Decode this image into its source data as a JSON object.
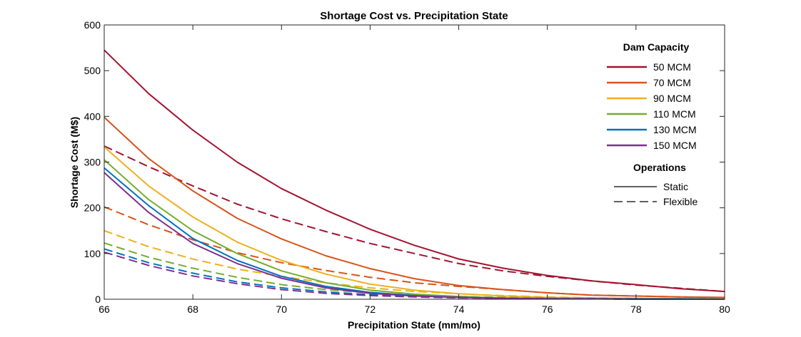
{
  "chart_data": {
    "type": "line",
    "title": "Shortage Cost vs. Precipitation State",
    "xlabel": "Precipitation State (mm/mo)",
    "ylabel": "Shortage Cost (M$)",
    "xlim": [
      66,
      80
    ],
    "ylim": [
      0,
      600
    ],
    "xticks": [
      66,
      68,
      70,
      72,
      74,
      76,
      78,
      80
    ],
    "yticks": [
      0,
      100,
      200,
      300,
      400,
      500,
      600
    ],
    "x": [
      66,
      67,
      68,
      69,
      70,
      71,
      72,
      73,
      74,
      75,
      76,
      77,
      78,
      79,
      80
    ],
    "grid": false,
    "legend_position": "top-right",
    "legend_capacity_title": "Dam Capacity",
    "legend_operations_title": "Operations",
    "operations": [
      {
        "name": "Static",
        "dash": "solid"
      },
      {
        "name": "Flexible",
        "dash": "dashed"
      }
    ],
    "capacities": [
      {
        "name": "50 MCM",
        "color": "#A2142F",
        "static": [
          545,
          450,
          370,
          300,
          242,
          195,
          153,
          118,
          88,
          68,
          52,
          40,
          32,
          23,
          17
        ],
        "flexible": [
          335,
          290,
          248,
          208,
          176,
          148,
          122,
          100,
          78,
          62,
          50,
          40,
          31,
          24,
          17
        ]
      },
      {
        "name": "70 MCM",
        "color": "#D95319",
        "static": [
          398,
          308,
          237,
          177,
          132,
          95,
          67,
          45,
          30,
          21,
          14,
          9,
          7,
          5,
          4
        ],
        "flexible": [
          202,
          163,
          130,
          102,
          80,
          63,
          48,
          36,
          28,
          21,
          14,
          9,
          7,
          5,
          3
        ]
      },
      {
        "name": "90 MCM",
        "color": "#EDB120",
        "static": [
          333,
          248,
          180,
          125,
          85,
          55,
          33,
          20,
          12,
          7,
          4,
          3,
          2,
          1,
          1
        ],
        "flexible": [
          150,
          115,
          88,
          66,
          50,
          36,
          25,
          17,
          12,
          8,
          5,
          3,
          2,
          1,
          1
        ]
      },
      {
        "name": "110 MCM",
        "color": "#77AC30",
        "static": [
          305,
          218,
          150,
          100,
          62,
          36,
          20,
          11,
          6,
          3,
          2,
          1,
          1,
          1,
          1
        ],
        "flexible": [
          123,
          92,
          68,
          48,
          32,
          21,
          14,
          9,
          6,
          4,
          3,
          2,
          1,
          1,
          1
        ]
      },
      {
        "name": "130 MCM",
        "color": "#0072BD",
        "static": [
          287,
          205,
          133,
          85,
          50,
          28,
          15,
          8,
          4,
          2,
          1,
          1,
          1,
          1,
          0
        ],
        "flexible": [
          110,
          80,
          57,
          38,
          25,
          16,
          10,
          6,
          4,
          2,
          1,
          1,
          1,
          0,
          0
        ]
      },
      {
        "name": "150 MCM",
        "color": "#7E2F8E",
        "static": [
          277,
          190,
          122,
          78,
          46,
          25,
          13,
          7,
          4,
          2,
          1,
          1,
          0,
          0,
          0
        ],
        "flexible": [
          103,
          74,
          51,
          34,
          21,
          13,
          8,
          5,
          3,
          2,
          1,
          1,
          0,
          0,
          0
        ]
      }
    ]
  }
}
